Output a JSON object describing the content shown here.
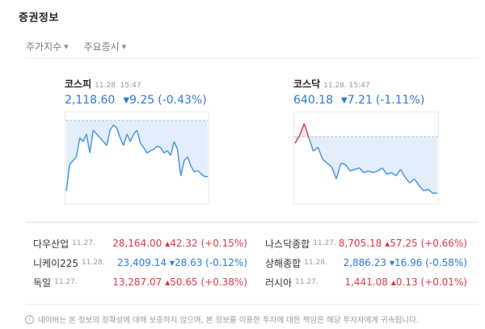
{
  "title": "증권정보",
  "tabs": [
    {
      "label": "주가지수",
      "caret": "▼"
    },
    {
      "label": "주요증시",
      "caret": "▼"
    }
  ],
  "indices": [
    {
      "name": "코스피",
      "time": "11.28. 15:47",
      "value": "2,118.60",
      "arrow": "▼",
      "change": "9.25",
      "percent": "(-0.43%)",
      "direction": "down"
    },
    {
      "name": "코스닥",
      "time": "11.28. 15:47",
      "value": "640.18",
      "arrow": "▼",
      "change": "7.21",
      "percent": "(-1.11%)",
      "direction": "down"
    }
  ],
  "world": {
    "left": [
      {
        "name": "다우산업",
        "time": "11.27.",
        "value": "28,164.00",
        "arrow": "▲",
        "change": "42.32",
        "percent": "(+0.15%)",
        "direction": "up"
      },
      {
        "name": "니케이225",
        "time": "11.28.",
        "value": "23,409.14",
        "arrow": "▼",
        "change": "28.63",
        "percent": "(-0.12%)",
        "direction": "down"
      },
      {
        "name": "독일",
        "time": "11.27.",
        "value": "13,287.07",
        "arrow": "▲",
        "change": "50.65",
        "percent": "(+0.38%)",
        "direction": "up"
      }
    ],
    "right": [
      {
        "name": "나스닥종합",
        "time": "11.27.",
        "value": "8,705.18",
        "arrow": "▲",
        "change": "57.25",
        "percent": "(+0.66%)",
        "direction": "up"
      },
      {
        "name": "상해종합",
        "time": "11.28.",
        "value": "2,886.23",
        "arrow": "▼",
        "change": "16.96",
        "percent": "(-0.58%)",
        "direction": "down"
      },
      {
        "name": "러시아",
        "time": "11.27.",
        "value": "1,441.08",
        "arrow": "▲",
        "change": "0.13",
        "percent": "(+0.01%)",
        "direction": "up"
      }
    ]
  },
  "notice": {
    "icon": "i",
    "text": "네이버는 본 정보의 정확성에 대해 보증하지 않으며, 본 정보를 이용한 투자에 대한 책임은 해당 투자자에게 귀속됩니다."
  },
  "colors": {
    "up": "#e0384a",
    "down": "#2a7ad8",
    "fill": "#e3eefb"
  },
  "chart_data": [
    {
      "type": "line",
      "title": "코스피",
      "baseline_label": "previous close (dashed)",
      "note": "intraday line, entirely below previous close",
      "y_relative": [
        0.95,
        0.6,
        0.55,
        0.5,
        0.25,
        0.3,
        0.2,
        0.45,
        0.15,
        0.2,
        0.25,
        0.3,
        0.35,
        0.15,
        0.08,
        0.12,
        0.25,
        0.35,
        0.2,
        0.3,
        0.2,
        0.15,
        0.32,
        0.38,
        0.45,
        0.42,
        0.4,
        0.36,
        0.38,
        0.45,
        0.42,
        0.48,
        0.3,
        0.4,
        0.75,
        0.55,
        0.5,
        0.62,
        0.7,
        0.68,
        0.72,
        0.76,
        0.76
      ]
    },
    {
      "type": "line",
      "title": "코스닥",
      "baseline_label": "previous close (dashed)",
      "note": "briefly above previous close (red) at open, then declines",
      "y_relative": [
        0.35,
        0.25,
        0.1,
        0.28,
        0.45,
        0.4,
        0.55,
        0.6,
        0.65,
        0.8,
        0.6,
        0.62,
        0.7,
        0.68,
        0.66,
        0.72,
        0.7,
        0.72,
        0.7,
        0.66,
        0.74,
        0.72,
        0.76,
        0.68,
        0.78,
        0.85,
        0.8,
        0.88,
        0.95,
        0.93,
        0.98,
        0.98
      ]
    }
  ]
}
